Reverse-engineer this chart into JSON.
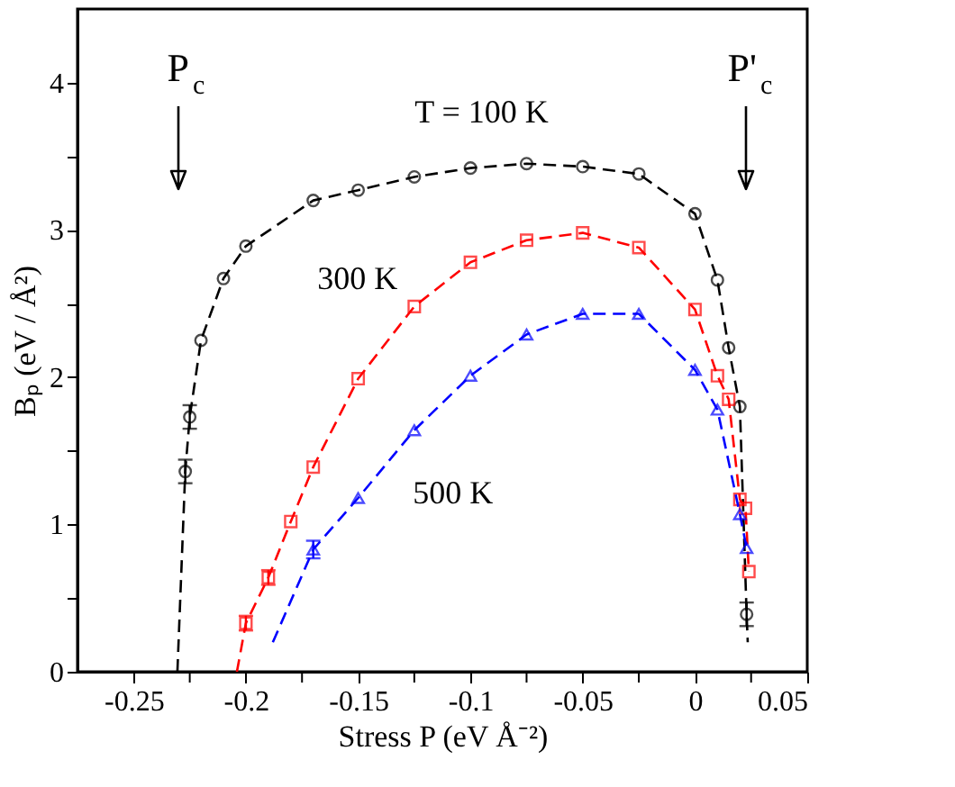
{
  "chart_data": {
    "type": "scatter",
    "xlabel": "Stress  P (eV Å⁻²)",
    "ylabel": "Bₚ (eV / Å²)",
    "xlim": [
      -0.275,
      0.05
    ],
    "ylim": [
      0,
      4.5
    ],
    "xticks": [
      -0.25,
      {
        "value": -0.225,
        "label": null
      },
      -0.2,
      {
        "value": -0.175,
        "label": null
      },
      -0.15,
      {
        "value": -0.125,
        "label": null
      },
      -0.1,
      {
        "value": -0.075,
        "label": null
      },
      -0.05,
      {
        "value": -0.025,
        "label": null
      },
      0,
      {
        "value": 0.025,
        "label": null
      },
      0.05
    ],
    "yticks": [
      0,
      {
        "value": 0.5,
        "label": null
      },
      1,
      {
        "value": 1.5,
        "label": null
      },
      2,
      {
        "value": 2.5,
        "label": null
      },
      3,
      {
        "value": 3.5,
        "label": null
      },
      4
    ],
    "grid": false,
    "series": [
      {
        "type": "line",
        "line_style": "dashed",
        "marker": "none",
        "color": "#000000",
        "x": [
          -0.2305,
          -0.227,
          -0.225,
          -0.22,
          -0.21,
          -0.2,
          -0.17,
          -0.15,
          -0.125,
          -0.1,
          -0.075,
          -0.05,
          -0.025,
          0,
          0.01,
          0.015,
          0.02,
          0.023,
          0.0235
        ],
        "values": [
          0,
          1.36,
          1.73,
          2.25,
          2.67,
          2.89,
          3.2,
          3.27,
          3.36,
          3.42,
          3.45,
          3.43,
          3.38,
          3.11,
          2.66,
          2.2,
          1.8,
          0.39,
          0.2
        ]
      },
      {
        "name": "T = 100 K",
        "marker": "circle",
        "color": "#000000",
        "x": [
          -0.227,
          -0.225,
          -0.22,
          -0.21,
          -0.2,
          -0.17,
          -0.15,
          -0.125,
          -0.1,
          -0.075,
          -0.05,
          -0.025,
          0,
          0.01,
          0.015,
          0.02,
          0.023
        ],
        "values": [
          1.36,
          1.73,
          2.25,
          2.67,
          2.89,
          3.2,
          3.27,
          3.36,
          3.42,
          3.45,
          3.43,
          3.38,
          3.11,
          2.66,
          2.2,
          1.8,
          0.39
        ],
        "errors": [
          0.08,
          0.08,
          null,
          null,
          null,
          null,
          null,
          null,
          null,
          null,
          null,
          null,
          null,
          null,
          null,
          null,
          0.08
        ]
      },
      {
        "type": "line",
        "line_style": "dashed",
        "marker": "none",
        "color": "#ff0000",
        "x": [
          -0.204,
          -0.2,
          -0.19,
          -0.18,
          -0.17,
          -0.15,
          -0.125,
          -0.1,
          -0.075,
          -0.05,
          -0.025,
          0,
          0.01,
          0.015,
          0.02,
          0.0225,
          0.024
        ],
        "values": [
          0,
          0.33,
          0.64,
          1.02,
          1.39,
          1.99,
          2.48,
          2.78,
          2.93,
          2.98,
          2.88,
          2.46,
          2.01,
          1.85,
          1.17,
          1.11,
          0.68
        ]
      },
      {
        "name": "300 K",
        "marker": "square",
        "color": "#ff0000",
        "x": [
          -0.2,
          -0.19,
          -0.18,
          -0.17,
          -0.15,
          -0.125,
          -0.1,
          -0.075,
          -0.05,
          -0.025,
          0,
          0.01,
          0.015,
          0.02,
          0.0225,
          0.024
        ],
        "values": [
          0.33,
          0.64,
          1.02,
          1.39,
          1.99,
          2.48,
          2.78,
          2.93,
          2.98,
          2.88,
          2.46,
          2.01,
          1.85,
          1.17,
          1.11,
          0.68
        ],
        "errors": [
          0.05,
          0.05,
          null,
          null,
          null,
          null,
          null,
          null,
          null,
          null,
          null,
          null,
          null,
          null,
          null,
          null
        ]
      },
      {
        "type": "line",
        "line_style": "dashed",
        "marker": "none",
        "color": "#0000ff",
        "x": [
          -0.188,
          -0.17,
          -0.15,
          -0.125,
          -0.1,
          -0.075,
          -0.05,
          -0.025,
          0,
          0.01,
          0.02,
          0.023
        ],
        "values": [
          0.2,
          0.83,
          1.18,
          1.64,
          2.01,
          2.29,
          2.43,
          2.43,
          2.05,
          1.78,
          1.07,
          0.84
        ]
      },
      {
        "name": "500 K",
        "marker": "triangle",
        "color": "#0000ff",
        "x": [
          -0.17,
          -0.15,
          -0.125,
          -0.1,
          -0.075,
          -0.05,
          -0.025,
          0,
          0.01,
          0.02,
          0.023
        ],
        "values": [
          0.83,
          1.18,
          1.64,
          2.01,
          2.29,
          2.43,
          2.43,
          2.05,
          1.78,
          1.07,
          0.84
        ],
        "errors": [
          0.06,
          null,
          null,
          null,
          null,
          null,
          null,
          null,
          null,
          null,
          null
        ]
      }
    ],
    "annotations": [
      "P$_{c}$",
      "P'$_{c}$"
    ]
  }
}
